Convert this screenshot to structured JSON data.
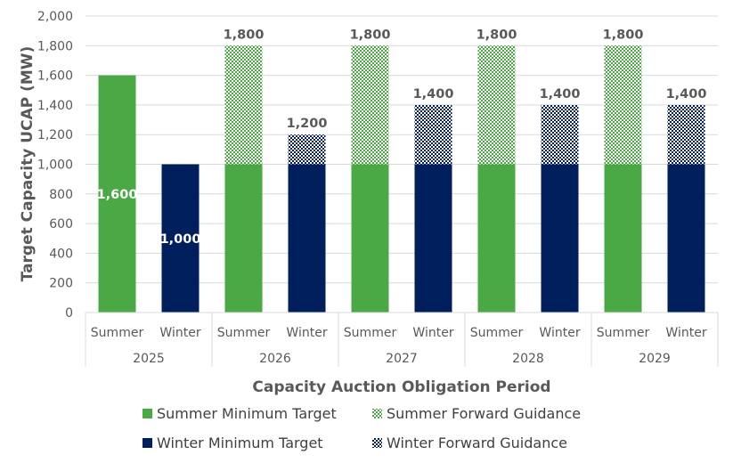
{
  "chart_data": {
    "type": "bar",
    "stacked": true,
    "groups": [
      "2025",
      "2026",
      "2027",
      "2028",
      "2029"
    ],
    "categories": [
      "Summer",
      "Winter",
      "Summer",
      "Winter",
      "Summer",
      "Winter",
      "Summer",
      "Winter",
      "Summer",
      "Winter"
    ],
    "series": [
      {
        "name": "Summer Minimum Target",
        "color": "#4aa845",
        "pattern": "solid",
        "values": [
          1600,
          null,
          1000,
          null,
          1000,
          null,
          1000,
          null,
          1000,
          null
        ]
      },
      {
        "name": "Summer Forward Guidance",
        "color": "#4aa845",
        "pattern": "checker",
        "values": [
          null,
          null,
          800,
          null,
          800,
          null,
          800,
          null,
          800,
          null
        ]
      },
      {
        "name": "Winter Minimum Target",
        "color": "#001f5c",
        "pattern": "solid",
        "values": [
          null,
          1000,
          null,
          1000,
          null,
          1000,
          null,
          1000,
          null,
          1000
        ]
      },
      {
        "name": "Winter Forward Guidance",
        "color": "#001f5c",
        "pattern": "checker",
        "values": [
          null,
          null,
          null,
          200,
          null,
          400,
          null,
          400,
          null,
          400
        ]
      }
    ],
    "data_labels": [
      "1,600",
      "1,000",
      "1,800",
      "1,200",
      "1,800",
      "1,400",
      "1,800",
      "1,400",
      "1,800",
      "1,400"
    ],
    "xlabel": "Capacity Auction Obligation Period",
    "ylabel": "Target Capacity UCAP (MW)",
    "ylim": [
      0,
      2000
    ],
    "yticks": [
      "0",
      "200",
      "400",
      "600",
      "800",
      "1,000",
      "1,200",
      "1,400",
      "1,600",
      "1,800",
      "2,000"
    ],
    "grid": true,
    "legend_placement": "bottom"
  }
}
